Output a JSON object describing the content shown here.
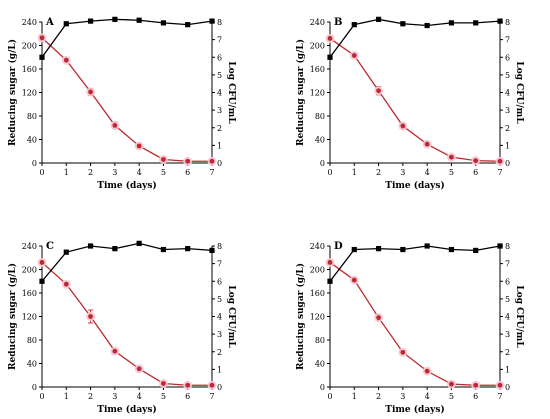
{
  "chart_data": [
    {
      "type": "line",
      "panel_label": "A",
      "x": [
        0,
        1,
        2,
        3,
        4,
        5,
        6,
        7
      ],
      "xlabel": "Time (days)",
      "ylabel": "Reducing sugar (g/L)",
      "y2label": "Log CFU/mL",
      "ylim": [
        0,
        240
      ],
      "y2lim": [
        0,
        8
      ],
      "xlim": [
        0,
        7
      ],
      "series": [
        {
          "axis": "left",
          "values": [
            213,
            175,
            121,
            64,
            29,
            6,
            3,
            3
          ],
          "errors": [
            4,
            3,
            6,
            6,
            3,
            2,
            1,
            1
          ],
          "color": "#c0282c",
          "marker": "circle"
        },
        {
          "axis": "right",
          "values": [
            6.0,
            7.9,
            8.05,
            8.15,
            8.1,
            7.95,
            7.85,
            8.05
          ],
          "color": "#000000",
          "marker": "square"
        }
      ]
    },
    {
      "type": "line",
      "panel_label": "B",
      "x": [
        0,
        1,
        2,
        3,
        4,
        5,
        6,
        7
      ],
      "xlabel": "Time (days)",
      "ylabel": "Reducing sugar (g/L)",
      "y2label": "Log CFU/mL",
      "ylim": [
        0,
        240
      ],
      "y2lim": [
        0,
        8
      ],
      "xlim": [
        0,
        7
      ],
      "series": [
        {
          "axis": "left",
          "values": [
            212,
            183,
            123,
            63,
            32,
            10,
            4,
            3
          ],
          "errors": [
            3,
            3,
            7,
            5,
            2,
            2,
            1,
            1
          ],
          "color": "#c0282c",
          "marker": "circle"
        },
        {
          "axis": "right",
          "values": [
            6.0,
            7.85,
            8.15,
            7.9,
            7.8,
            7.95,
            7.95,
            8.05
          ],
          "color": "#000000",
          "marker": "square"
        }
      ]
    },
    {
      "type": "line",
      "panel_label": "C",
      "x": [
        0,
        1,
        2,
        3,
        4,
        5,
        6,
        7
      ],
      "xlabel": "Time (days)",
      "ylabel": "Reducing sugar (g/L)",
      "y2label": "Log CFU/mL",
      "ylim": [
        0,
        240
      ],
      "y2lim": [
        0,
        8
      ],
      "xlim": [
        0,
        7
      ],
      "series": [
        {
          "axis": "left",
          "values": [
            212,
            175,
            120,
            61,
            31,
            6,
            3,
            3
          ],
          "errors": [
            3,
            3,
            11,
            2,
            2,
            1,
            1,
            1
          ],
          "color": "#c0282c",
          "marker": "circle"
        },
        {
          "axis": "right",
          "values": [
            6.0,
            7.65,
            8.0,
            7.85,
            8.15,
            7.8,
            7.85,
            7.75
          ],
          "color": "#000000",
          "marker": "square"
        }
      ]
    },
    {
      "type": "line",
      "panel_label": "D",
      "x": [
        0,
        1,
        2,
        3,
        4,
        5,
        6,
        7
      ],
      "xlabel": "Time (days)",
      "ylabel": "Reducing sugar (g/L)",
      "y2label": "Log CFU/mL",
      "ylim": [
        0,
        240
      ],
      "y2lim": [
        0,
        8
      ],
      "xlim": [
        0,
        7
      ],
      "series": [
        {
          "axis": "left",
          "values": [
            212,
            182,
            118,
            59,
            27,
            5,
            3,
            3
          ],
          "errors": [
            3,
            3,
            5,
            3,
            2,
            1,
            1,
            1
          ],
          "color": "#c0282c",
          "marker": "circle"
        },
        {
          "axis": "right",
          "values": [
            6.0,
            7.8,
            7.85,
            7.8,
            8.0,
            7.8,
            7.75,
            8.0
          ],
          "color": "#000000",
          "marker": "square"
        }
      ]
    }
  ]
}
